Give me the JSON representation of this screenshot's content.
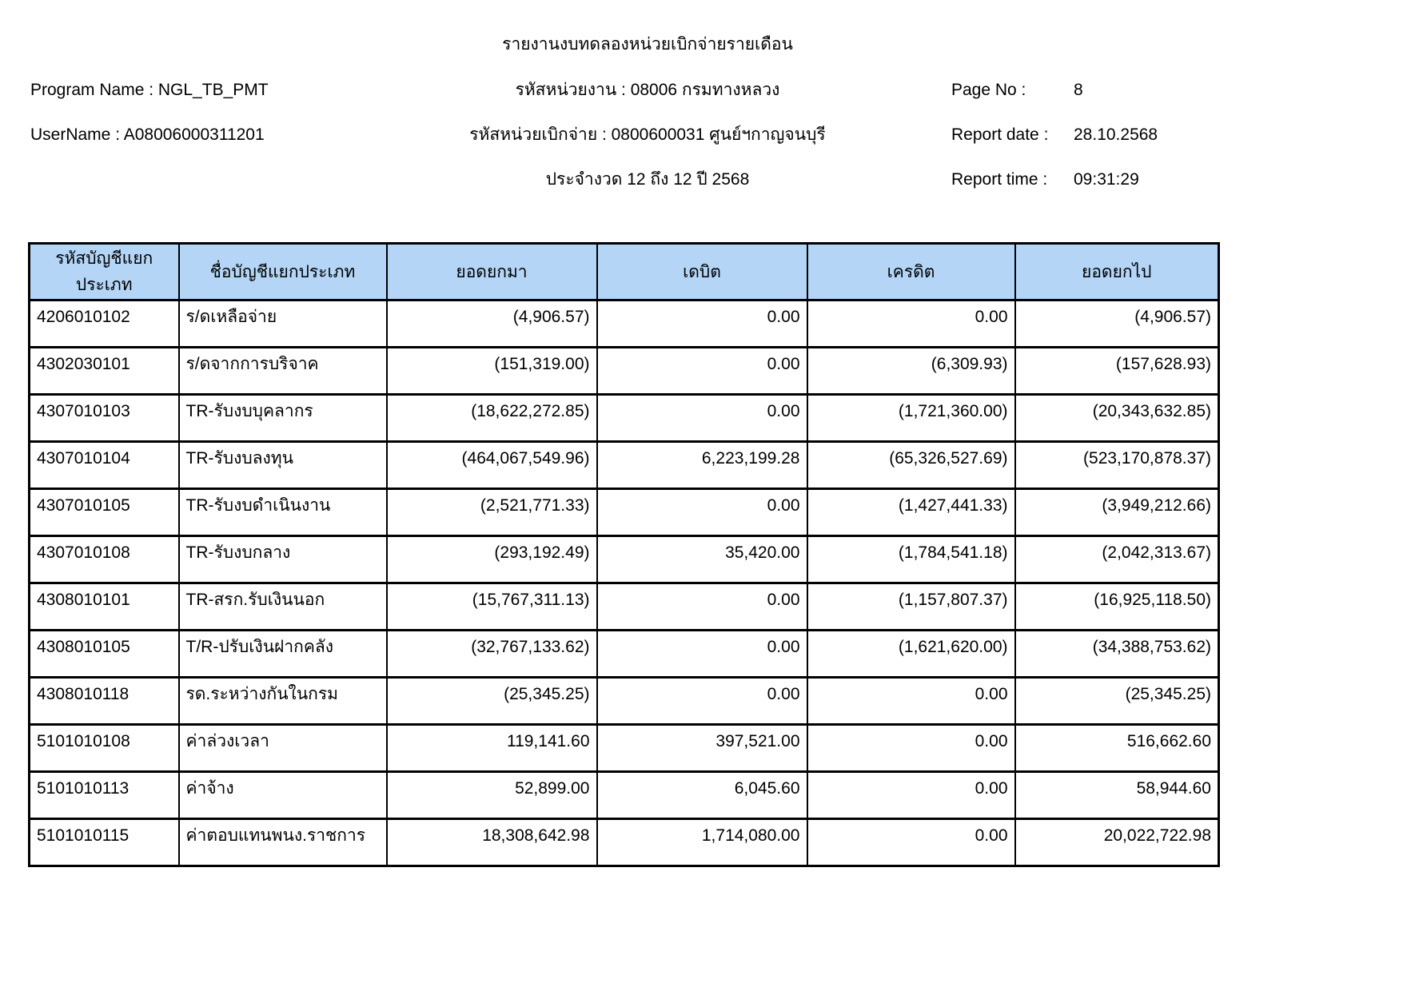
{
  "header": {
    "title": "รายงานงบทดลองหน่วยเบิกจ่ายรายเดือน",
    "program_name": "Program Name : NGL_TB_PMT",
    "user_name": "UserName : A08006000311201",
    "agency_code": "รหัสหน่วยงาน : 08006 กรมทางหลวง",
    "disbursement_unit": "รหัสหน่วยเบิกจ่าย : 0800600031 ศูนย์ฯกาญจนบุรี",
    "period": "ประจำงวด 12 ถึง 12 ปี 2568",
    "page_no_label": "Page No :",
    "page_no": "8",
    "report_date_label": "Report date :",
    "report_date": "28.10.2568",
    "report_time_label": "Report time :",
    "report_time": "09:31:29"
  },
  "table": {
    "header_bg": "#B4D5F6",
    "border_color": "#000000",
    "columns": [
      "รหัสบัญชีแยกประเภท",
      "ชื่อบัญชีแยกประเภท",
      "ยอดยกมา",
      "เดบิต",
      "เครดิต",
      "ยอดยกไป"
    ],
    "column_names": [
      "account-code",
      "account-name",
      "balance-brought-forward",
      "debit",
      "credit",
      "balance-carried-forward"
    ],
    "rows": [
      [
        "4206010102",
        "ร/ดเหลือจ่าย",
        "(4,906.57)",
        "0.00",
        "0.00",
        "(4,906.57)"
      ],
      [
        "4302030101",
        "ร/ดจากการบริจาค",
        "(151,319.00)",
        "0.00",
        "(6,309.93)",
        "(157,628.93)"
      ],
      [
        "4307010103",
        "TR-รับงบบุคลากร",
        "(18,622,272.85)",
        "0.00",
        "(1,721,360.00)",
        "(20,343,632.85)"
      ],
      [
        "4307010104",
        "TR-รับงบลงทุน",
        "(464,067,549.96)",
        "6,223,199.28",
        "(65,326,527.69)",
        "(523,170,878.37)"
      ],
      [
        "4307010105",
        "TR-รับงบดำเนินงาน",
        "(2,521,771.33)",
        "0.00",
        "(1,427,441.33)",
        "(3,949,212.66)"
      ],
      [
        "4307010108",
        "TR-รับงบกลาง",
        "(293,192.49)",
        "35,420.00",
        "(1,784,541.18)",
        "(2,042,313.67)"
      ],
      [
        "4308010101",
        "TR-สรก.รับเงินนอก",
        "(15,767,311.13)",
        "0.00",
        "(1,157,807.37)",
        "(16,925,118.50)"
      ],
      [
        "4308010105",
        "T/R-ปรับเงินฝากคลัง",
        "(32,767,133.62)",
        "0.00",
        "(1,621,620.00)",
        "(34,388,753.62)"
      ],
      [
        "4308010118",
        "รด.ระหว่างกันในกรม",
        "(25,345.25)",
        "0.00",
        "0.00",
        "(25,345.25)"
      ],
      [
        "5101010108",
        "ค่าล่วงเวลา",
        "119,141.60",
        "397,521.00",
        "0.00",
        "516,662.60"
      ],
      [
        "5101010113",
        "ค่าจ้าง",
        "52,899.00",
        "6,045.60",
        "0.00",
        "58,944.60"
      ],
      [
        "5101010115",
        "ค่าตอบแทนพนง.ราชการ",
        "18,308,642.98",
        "1,714,080.00",
        "0.00",
        "20,022,722.98"
      ]
    ]
  }
}
